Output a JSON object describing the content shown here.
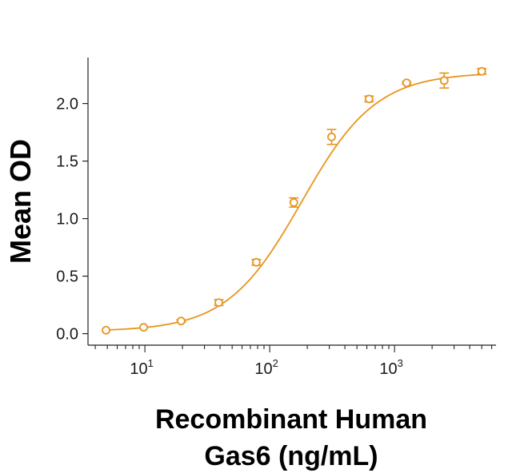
{
  "chart_data": {
    "type": "scatter",
    "xlabel": [
      "Recombinant Human",
      "Gas6 (ng/mL)"
    ],
    "ylabel": "Mean OD",
    "x_scale": "log",
    "xlim": [
      3.5,
      6500
    ],
    "ylim": [
      -0.1,
      2.4
    ],
    "x_ticks": [
      {
        "value": 10,
        "base": "10",
        "exp": "1"
      },
      {
        "value": 100,
        "base": "10",
        "exp": "2"
      },
      {
        "value": 1000,
        "base": "10",
        "exp": "3"
      }
    ],
    "y_ticks": [
      {
        "value": 0.0,
        "label": "0.0"
      },
      {
        "value": 0.5,
        "label": "0.5"
      },
      {
        "value": 1.0,
        "label": "1.0"
      },
      {
        "value": 1.5,
        "label": "1.5"
      },
      {
        "value": 2.0,
        "label": "2.0"
      }
    ],
    "grid": false,
    "series": [
      {
        "color": "#e8941e",
        "points": [
          {
            "x": 4.88,
            "y": 0.03,
            "err": 0.0
          },
          {
            "x": 9.77,
            "y": 0.055,
            "err": 0.0
          },
          {
            "x": 19.5,
            "y": 0.11,
            "err": 0.01
          },
          {
            "x": 39.1,
            "y": 0.27,
            "err": 0.025
          },
          {
            "x": 78.1,
            "y": 0.62,
            "err": 0.025
          },
          {
            "x": 156,
            "y": 1.14,
            "err": 0.04
          },
          {
            "x": 313,
            "y": 1.71,
            "err": 0.065
          },
          {
            "x": 625,
            "y": 2.04,
            "err": 0.025
          },
          {
            "x": 1250,
            "y": 2.18,
            "err": 0.01
          },
          {
            "x": 2500,
            "y": 2.2,
            "err": 0.065
          },
          {
            "x": 5000,
            "y": 2.28,
            "err": 0.025
          }
        ],
        "fit_curve": {
          "model": "4PL",
          "bottom": 0.02,
          "top": 2.27,
          "ec50": 180,
          "hill": 1.45
        }
      }
    ]
  }
}
